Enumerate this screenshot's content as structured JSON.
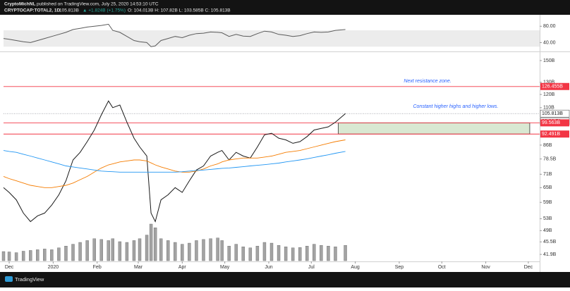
{
  "header": {
    "author": "CryptoMichNL",
    "published": "published on TradingView.com, July 25, 2020 14:53:10 UTC",
    "symbol": "CRYPTOCAP:TOTAL2, 1D",
    "price": "105.813B",
    "change": "▲ +1.824B (+1.75%)",
    "ohlc": "O: 104.013B H: 107.82B L: 103.585B C: 105.813B"
  },
  "footer": {
    "brand": "TradingView"
  },
  "chart_data": [
    {
      "type": "line",
      "x": [
        -4,
        0,
        5,
        10,
        15,
        20,
        25,
        30,
        35,
        40,
        45,
        50,
        55,
        60,
        65,
        70,
        73,
        78,
        83,
        88,
        92,
        97,
        100,
        103,
        107,
        112,
        117,
        122,
        127,
        132,
        137,
        142,
        147,
        150,
        155,
        160,
        165,
        170,
        175,
        180,
        185,
        190,
        195,
        200,
        205,
        210,
        215,
        220,
        225,
        230,
        237
      ],
      "series": [
        {
          "color": "#5b5b5b",
          "values": [
            50,
            48,
            45,
            42,
            40,
            45,
            50,
            55,
            60,
            65,
            72,
            75,
            78,
            80,
            82,
            85,
            70,
            65,
            55,
            45,
            42,
            40,
            30,
            32,
            45,
            50,
            55,
            52,
            58,
            62,
            63,
            66,
            65,
            64,
            55,
            60,
            56,
            55,
            62,
            68,
            66,
            60,
            58,
            55,
            57,
            62,
            66,
            65,
            66,
            70,
            72
          ]
        }
      ],
      "xlim": [
        -4,
        374
      ],
      "ylim": [
        20,
        96
      ],
      "band": [
        30,
        70
      ],
      "band_color": "#ececec",
      "yticks": [
        {
          "value": 80,
          "label": "80.00"
        },
        {
          "value": 40,
          "label": "40.00"
        }
      ]
    },
    {
      "type": "line",
      "log_scale": true,
      "x": [
        -4,
        0,
        5,
        10,
        15,
        20,
        25,
        30,
        35,
        40,
        45,
        50,
        55,
        60,
        65,
        70,
        73,
        78,
        83,
        88,
        92,
        97,
        100,
        103,
        107,
        112,
        117,
        122,
        127,
        132,
        137,
        142,
        147,
        150,
        155,
        160,
        165,
        170,
        175,
        180,
        185,
        190,
        195,
        200,
        205,
        210,
        215,
        220,
        225,
        230,
        237
      ],
      "series": [
        {
          "color": "#1a1a1a",
          "values": [
            65,
            63,
            60,
            55,
            52,
            54,
            55,
            58,
            62,
            68,
            78,
            82,
            88,
            95,
            105,
            115,
            110,
            112,
            100,
            90,
            85,
            80,
            55,
            52,
            60,
            62,
            65,
            63,
            68,
            73,
            75,
            80,
            82,
            83,
            78,
            82,
            80,
            79,
            85,
            92,
            93,
            90,
            89,
            87,
            88,
            91,
            95,
            96,
            97,
            100,
            105.8
          ]
        },
        {
          "color": "#f57c00",
          "values": [
            70,
            69,
            68,
            67,
            66,
            65.5,
            65,
            65,
            65.5,
            66,
            67,
            68.5,
            70,
            72,
            74,
            75.5,
            76,
            77,
            77.5,
            78,
            78,
            77.5,
            76.5,
            75.5,
            74.5,
            73.5,
            72.5,
            72,
            72,
            72.5,
            73.5,
            75,
            76,
            77,
            78,
            78.5,
            79,
            79,
            79,
            79.5,
            80,
            81,
            82,
            82.5,
            83,
            84,
            85,
            86,
            87,
            88,
            89
          ]
        },
        {
          "color": "#2196f3",
          "values": [
            83,
            82.5,
            82,
            81,
            80,
            79,
            78,
            77,
            76,
            75,
            74.5,
            74,
            73.5,
            73,
            72.5,
            72.3,
            72.2,
            72,
            72,
            72,
            72,
            72,
            72,
            72,
            72,
            72,
            72,
            72.2,
            72.5,
            72.8,
            73,
            73.3,
            73.6,
            73.8,
            74,
            74.3,
            74.6,
            75,
            75.3,
            75.6,
            76,
            76.4,
            77,
            77.5,
            78,
            78.6,
            79.3,
            80,
            80.7,
            81.5,
            82.5
          ]
        }
      ],
      "xlim": [
        -4,
        374
      ],
      "ylim": [
        40.2,
        157.8
      ],
      "xticks": [
        {
          "value": 0,
          "label": "Dec"
        },
        {
          "value": 31,
          "label": "2020"
        },
        {
          "value": 62,
          "label": "Feb"
        },
        {
          "value": 91,
          "label": "Mar"
        },
        {
          "value": 122,
          "label": "Apr"
        },
        {
          "value": 152,
          "label": "May"
        },
        {
          "value": 183,
          "label": "Jun"
        },
        {
          "value": 213,
          "label": "Jul"
        },
        {
          "value": 244,
          "label": "Aug"
        },
        {
          "value": 275,
          "label": "Sep"
        },
        {
          "value": 305,
          "label": "Oct"
        },
        {
          "value": 336,
          "label": "Nov"
        },
        {
          "value": 366,
          "label": "Dec"
        }
      ],
      "yticks": [
        {
          "value": 150,
          "label": "150B"
        },
        {
          "value": 130,
          "label": "130B"
        },
        {
          "value": 120,
          "label": "120B"
        },
        {
          "value": 110,
          "label": "110B"
        },
        {
          "value": 86,
          "label": "86B"
        },
        {
          "value": 78.5,
          "label": "78.5B"
        },
        {
          "value": 71,
          "label": "71B"
        },
        {
          "value": 65,
          "label": "65B"
        },
        {
          "value": 59,
          "label": "59B"
        },
        {
          "value": 53,
          "label": "53B"
        },
        {
          "value": 49,
          "label": "49B"
        },
        {
          "value": 45.5,
          "label": "45.5B"
        },
        {
          "value": 41.9,
          "label": "41.9B"
        }
      ],
      "levels": [
        {
          "value": 126.455,
          "label": "126.455B",
          "color": "#f23645"
        },
        {
          "value": 105.813,
          "label": "105.813B",
          "color": "#787b86"
        },
        {
          "value": 99.563,
          "label": "99.563B",
          "color": "#f23645"
        },
        {
          "value": 92.491,
          "label": "92.491B",
          "color": "#f23645"
        }
      ],
      "countdown": "09:06:51",
      "zone": {
        "x": [
          232,
          367
        ],
        "y": [
          92.491,
          99.563
        ],
        "color": "#d9e8d2"
      },
      "annotations": [
        "Next resistance zone.",
        "Constant higher highs and higher lows."
      ]
    },
    {
      "type": "bar",
      "x": [
        -4,
        0,
        5,
        10,
        15,
        20,
        25,
        30,
        35,
        40,
        45,
        50,
        55,
        60,
        65,
        70,
        73,
        78,
        83,
        88,
        92,
        97,
        100,
        103,
        107,
        112,
        117,
        122,
        127,
        132,
        137,
        142,
        147,
        150,
        155,
        160,
        165,
        170,
        175,
        180,
        185,
        190,
        195,
        200,
        205,
        210,
        215,
        220,
        225,
        230,
        237
      ],
      "values": [
        25,
        24,
        22,
        26,
        28,
        30,
        32,
        30,
        35,
        40,
        45,
        50,
        55,
        60,
        58,
        55,
        60,
        52,
        50,
        55,
        60,
        70,
        100,
        90,
        60,
        55,
        50,
        45,
        48,
        55,
        58,
        60,
        62,
        55,
        40,
        45,
        38,
        35,
        40,
        50,
        48,
        42,
        38,
        35,
        36,
        40,
        45,
        42,
        40,
        38,
        42
      ],
      "xlim": [
        -4,
        374
      ],
      "ylim": [
        0,
        100
      ],
      "color": "#a3a3a3"
    }
  ]
}
